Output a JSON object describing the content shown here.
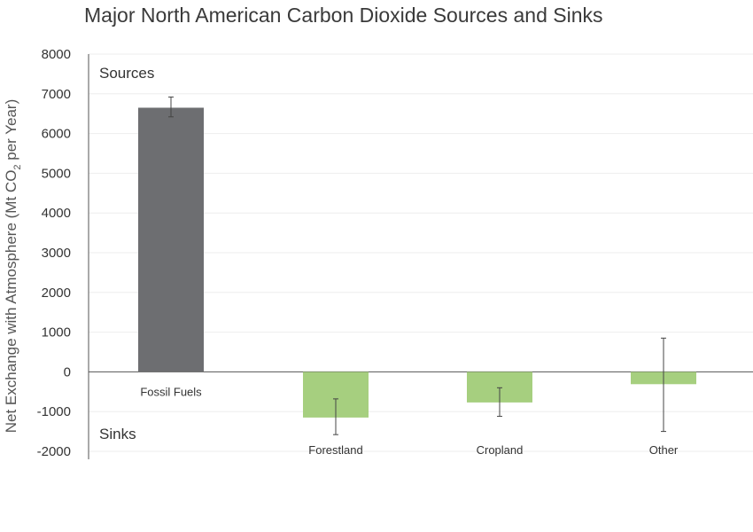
{
  "chart_data": {
    "type": "bar",
    "title": "Major North American Carbon Dioxide Sources and Sinks",
    "ylabel": "Net Exchange with Atmosphere (Mt CO",
    "ylabel_sub": "2",
    "ylabel_suffix": " per Year)",
    "ylim": [
      -2000,
      8000
    ],
    "yticks": [
      8000,
      7000,
      6000,
      5000,
      4000,
      3000,
      2000,
      1000,
      0,
      -1000,
      -2000
    ],
    "grid": true,
    "categories": [
      "Fossil Fuels",
      "Forestland",
      "Cropland",
      "Other"
    ],
    "values": [
      6650,
      -1150,
      -770,
      -310
    ],
    "error_low": [
      6420,
      -1580,
      -1120,
      -1500
    ],
    "error_high": [
      6920,
      -680,
      -400,
      850
    ],
    "colors": [
      "#6d6e71",
      "#a6cf7f",
      "#a6cf7f",
      "#a6cf7f"
    ],
    "annotations": {
      "sources": "Sources",
      "sinks": "Sinks"
    }
  }
}
